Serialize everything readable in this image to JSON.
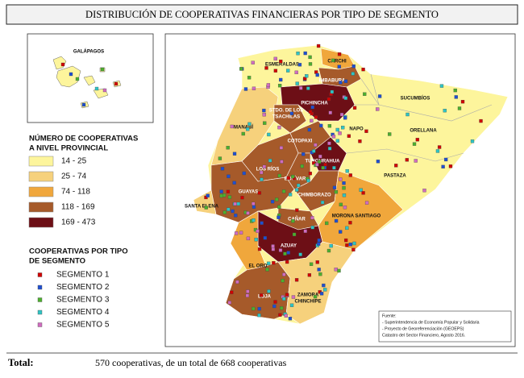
{
  "title": "DISTRIBUCIÓN DE COOPERATIVAS FINANCIERAS POR TIPO DE SEGMENTO",
  "inset_label": "GALÁPAGOS",
  "province_legend": {
    "heading": [
      "NÚMERO DE COOPERATIVAS",
      "A NIVEL PROVINCIAL"
    ],
    "items": [
      {
        "label": "14 - 25",
        "color": "#fdf59c"
      },
      {
        "label": "25 - 74",
        "color": "#f6d17c"
      },
      {
        "label": "74 - 118",
        "color": "#f0a73c"
      },
      {
        "label": "118 - 169",
        "color": "#a65a2a"
      },
      {
        "label": "169 - 473",
        "color": "#6d0f16"
      }
    ]
  },
  "segment_legend": {
    "heading": [
      "COOPERATIVAS POR TIPO",
      "DE SEGMENTO"
    ],
    "items": [
      {
        "label": "SEGMENTO 1",
        "color": "#d00000"
      },
      {
        "label": "SEGMENTO 2",
        "color": "#1f4fd0"
      },
      {
        "label": "SEGMENTO 3",
        "color": "#4caf2e"
      },
      {
        "label": "SEGMENTO 4",
        "color": "#2fc4c4"
      },
      {
        "label": "SEGMENTO 5",
        "color": "#d06cc0"
      }
    ]
  },
  "provinces": [
    "ESMERALDAS",
    "CARCHI",
    "IMBABURA",
    "SUCUMBÍOS",
    "PICHINCHA",
    "STDO. DE LOS",
    "TSACHILAS",
    "MANABÍ",
    "NAPO",
    "ORELLANA",
    "COTOPAXI",
    "TUNGURAHUA",
    "LOS RÍOS",
    "BOLÍVAR",
    "PASTAZA",
    "GUAYAS",
    "CHIMBORAZO",
    "SANTA ELENA",
    "MORONA SANTIAGO",
    "CAÑAR",
    "AZUAY",
    "EL ORO",
    "LOJA",
    "ZAMORA",
    "CHINCHIPE"
  ],
  "source": [
    "Fuente:",
    "- Superintendencia de Economía Popular y Solidaria",
    "- Proyecto de Georeferenciación (GEOEPS)",
    "Catastro del Sector Financiero, Agosto 2016."
  ],
  "footer": {
    "label": "Total:",
    "text": "570 cooperativas, de un total de 668 cooperativas"
  }
}
